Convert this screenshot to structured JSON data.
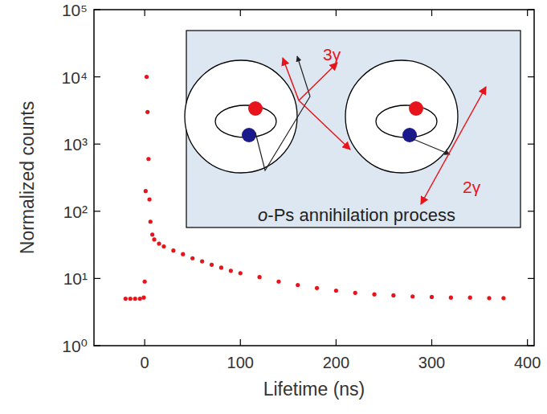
{
  "chart_data": {
    "type": "scatter",
    "x_label": "Lifetime (ns)",
    "y_label": "Normalized counts",
    "annotations": {
      "inset_title": "o-Ps annihilation process",
      "three_gamma": "3γ",
      "two_gamma": "2γ"
    },
    "x": [
      -20,
      -15,
      -10,
      -5,
      -1,
      0,
      1,
      2,
      3,
      4,
      5,
      6,
      8,
      10,
      15,
      20,
      30,
      40,
      50,
      60,
      70,
      80,
      90,
      100,
      120,
      140,
      160,
      180,
      200,
      220,
      240,
      260,
      280,
      300,
      320,
      340,
      360,
      375
    ],
    "values": [
      5,
      5,
      5,
      5,
      5.2,
      9,
      200,
      10000,
      3000,
      600,
      150,
      70,
      45,
      38,
      33,
      30,
      26,
      23,
      20,
      18,
      16,
      14.5,
      13,
      12,
      10.5,
      9,
      8,
      7.2,
      6.6,
      6.1,
      5.8,
      5.6,
      5.4,
      5.3,
      5.2,
      5.2,
      5.1,
      5.1
    ],
    "color": "#e8141b",
    "marker": "circle",
    "log": "y",
    "xlim": [
      -53,
      407
    ],
    "xticks": [
      0,
      100,
      200,
      300,
      400
    ],
    "ylim": [
      1,
      100000
    ],
    "yticks": [
      {
        "value": 1,
        "label": "10⁰"
      },
      {
        "value": 10,
        "label": "10¹"
      },
      {
        "value": 100,
        "label": "10²"
      },
      {
        "value": 1000,
        "label": "10³"
      },
      {
        "value": 10000,
        "label": "10⁴"
      },
      {
        "value": 100000,
        "label": "10⁵"
      }
    ]
  }
}
